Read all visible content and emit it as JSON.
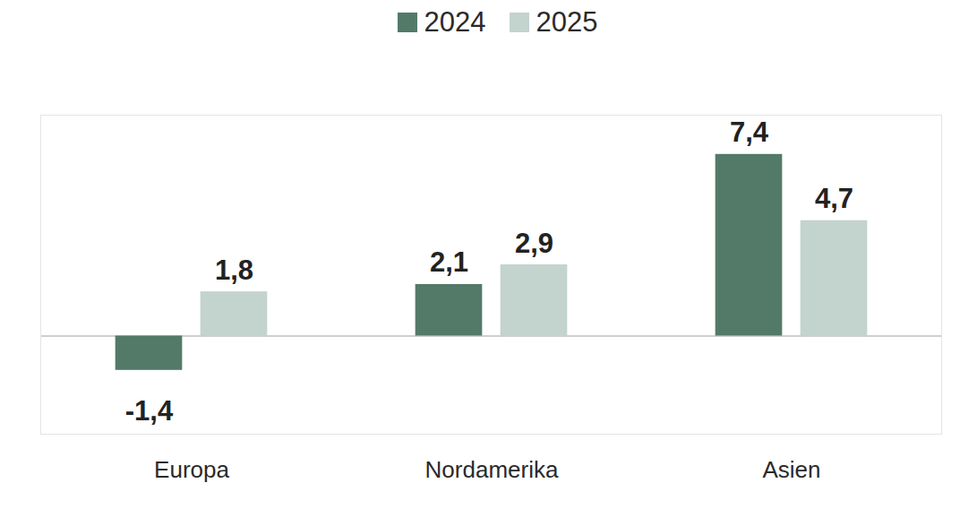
{
  "chart_data": {
    "type": "bar",
    "categories": [
      "Europa",
      "Nordamerika",
      "Asien"
    ],
    "series": [
      {
        "name": "2024",
        "color": "#537a69",
        "values": [
          -1.4,
          2.1,
          7.4
        ],
        "value_labels": [
          "-1,4",
          "2,1",
          "7,4"
        ]
      },
      {
        "name": "2025",
        "color": "#c3d3cd",
        "values": [
          1.8,
          2.9,
          4.7
        ],
        "value_labels": [
          "1,8",
          "2,9",
          "4,7"
        ]
      }
    ],
    "ylim": [
      -4,
      9
    ],
    "yticks": [
      0
    ],
    "grid": true,
    "legend": "top",
    "data_labels": true,
    "tick_labels": "x"
  }
}
